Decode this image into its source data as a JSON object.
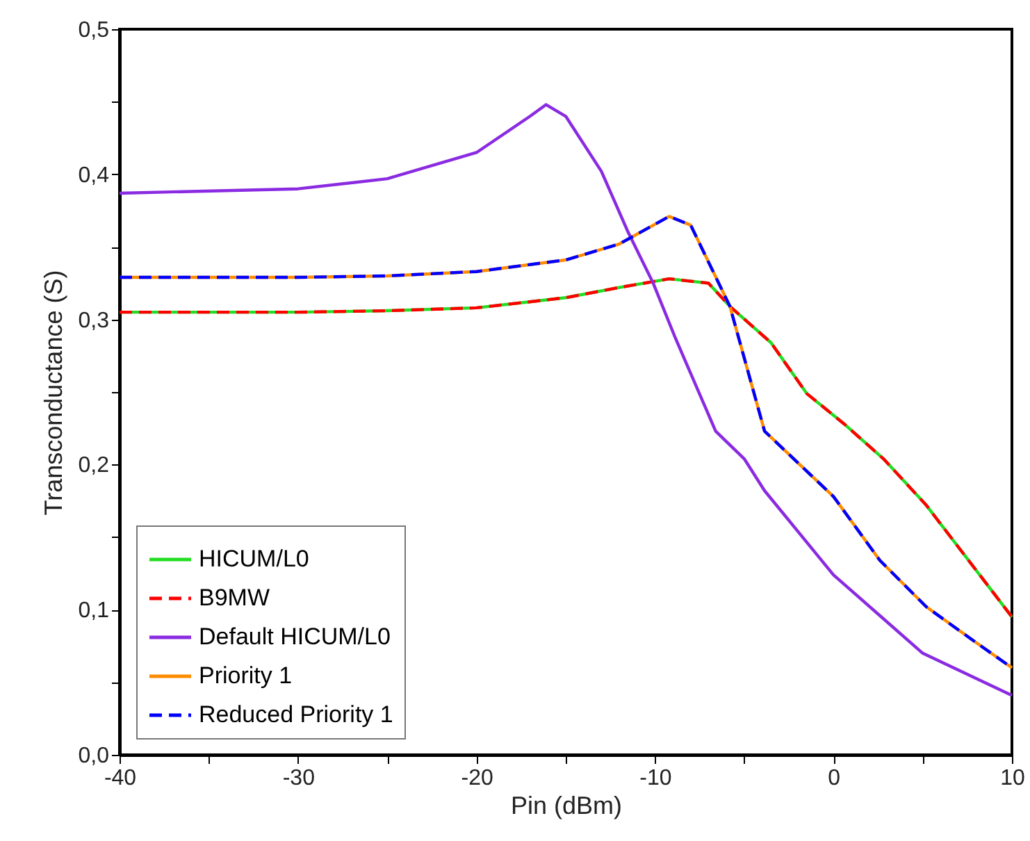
{
  "chart_data": {
    "type": "line",
    "xlabel": "Pin (dBm)",
    "ylabel": "Transconductance (S)",
    "xlim": [
      -40,
      10
    ],
    "ylim": [
      0,
      0.5
    ],
    "xticks": [
      -40,
      {
        "value": -35,
        "label": null
      },
      -30,
      {
        "value": -25,
        "label": null
      },
      -20,
      {
        "value": -15,
        "label": null
      },
      -10,
      {
        "value": -5,
        "label": null
      },
      0,
      {
        "value": 5,
        "label": null
      },
      10
    ],
    "yticks": [
      {
        "value": 0,
        "label": "0,0"
      },
      {
        "value": 0.05,
        "label": null
      },
      {
        "value": 0.1,
        "label": "0,1"
      },
      {
        "value": 0.15,
        "label": null
      },
      {
        "value": 0.2,
        "label": "0,2"
      },
      {
        "value": 0.25,
        "label": null
      },
      {
        "value": 0.3,
        "label": "0,3"
      },
      {
        "value": 0.35,
        "label": null
      },
      {
        "value": 0.4,
        "label": "0,4"
      },
      {
        "value": 0.45,
        "label": null
      },
      {
        "value": 0.5,
        "label": "0,5"
      }
    ],
    "x": [
      -40,
      -30,
      -25,
      -20,
      -15,
      -12,
      -9.2,
      -7,
      -5.8,
      -3.5,
      -1.5,
      0.6,
      2.8,
      5.2,
      10
    ],
    "legend": "bottom left",
    "grid": false,
    "marker": "none",
    "series": [
      {
        "name": "HICUM/L0",
        "color": "#22dd22",
        "line_style": "solid",
        "values": [
          0.305,
          0.305,
          0.306,
          0.308,
          0.315,
          0.322,
          0.328,
          0.325,
          0.309,
          0.284,
          0.249,
          0.228,
          0.204,
          0.172,
          0.095
        ]
      },
      {
        "name": "B9MW",
        "color": "#ff0000",
        "line_style": "dashed",
        "values": [
          0.305,
          0.305,
          0.306,
          0.308,
          0.315,
          0.322,
          0.328,
          0.325,
          0.309,
          0.284,
          0.249,
          0.228,
          0.204,
          0.172,
          0.095
        ]
      },
      {
        "name": "Default HICUM/L0",
        "color": "#8a2be2",
        "line_style": "solid",
        "x": [
          -40,
          -30,
          -25,
          -20,
          -17,
          -16.1,
          -15,
          -13,
          -11.5,
          -10.1,
          -8.85,
          -6.6,
          -5,
          -3.86,
          0,
          5,
          10
        ],
        "values": [
          0.387,
          0.39,
          0.397,
          0.415,
          0.44,
          0.448,
          0.44,
          0.402,
          0.36,
          0.325,
          0.287,
          0.223,
          0.204,
          0.182,
          0.124,
          0.07,
          0.041
        ]
      },
      {
        "name": "Priority 1",
        "color": "#ff8c00",
        "line_style": "solid",
        "x": [
          -40,
          -30,
          -25,
          -20,
          -15,
          -12,
          -9.2,
          -8,
          -5.8,
          -3.86,
          0,
          2.6,
          5.2,
          7.8,
          10
        ],
        "values": [
          0.329,
          0.329,
          0.33,
          0.333,
          0.341,
          0.352,
          0.371,
          0.365,
          0.309,
          0.223,
          0.178,
          0.134,
          0.102,
          0.079,
          0.06
        ]
      },
      {
        "name": "Reduced Priority 1",
        "color": "#0000ff",
        "line_style": "dashed",
        "x": [
          -40,
          -30,
          -25,
          -20,
          -15,
          -12,
          -9.2,
          -8,
          -5.8,
          -3.86,
          0,
          2.6,
          5.2,
          7.8,
          10
        ],
        "values": [
          0.329,
          0.329,
          0.33,
          0.333,
          0.341,
          0.352,
          0.371,
          0.365,
          0.309,
          0.223,
          0.178,
          0.134,
          0.102,
          0.079,
          0.06
        ]
      }
    ]
  }
}
